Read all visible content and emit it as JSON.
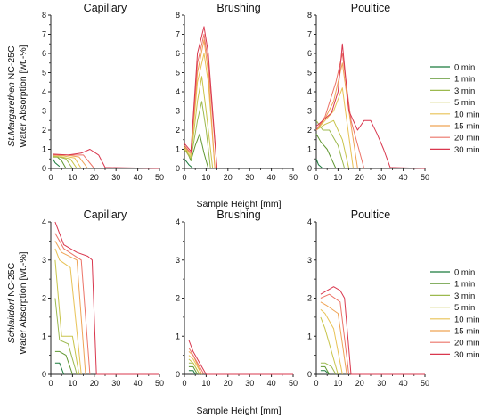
{
  "figure": {
    "x_label": "Sample Height [mm]",
    "rows": [
      {
        "stone": "St.Margarethen",
        "stone_suffix": " NC-25C",
        "ylabel_2": "Water Absorption [wt.-%]"
      },
      {
        "stone": "Schlaitdorf",
        "stone_suffix": " NC-25C",
        "ylabel_2": "Water Absorption [wt.-%]"
      }
    ]
  },
  "chart_data": [
    {
      "type": "line",
      "row": 0,
      "col": 0,
      "title": "Capillary",
      "xlim": [
        0,
        50
      ],
      "ylim": [
        0,
        8
      ],
      "xticks": [
        0,
        10,
        20,
        30,
        40,
        50
      ],
      "yticks": [
        0,
        1,
        2,
        3,
        4,
        5,
        6,
        7,
        8
      ],
      "series": [
        {
          "name": "0 min",
          "color": "#1a7a3c",
          "x": [
            1,
            2,
            4
          ],
          "y": [
            0.5,
            0.3,
            0.1
          ]
        },
        {
          "name": "1 min",
          "color": "#5f9630",
          "x": [
            1,
            3,
            5,
            7
          ],
          "y": [
            0.6,
            0.6,
            0.4,
            0.0
          ]
        },
        {
          "name": "3 min",
          "color": "#9cb94e",
          "x": [
            1,
            4,
            7,
            10
          ],
          "y": [
            0.6,
            0.6,
            0.5,
            0.0
          ]
        },
        {
          "name": "5 min",
          "color": "#c8c44a",
          "x": [
            1,
            5,
            9,
            12
          ],
          "y": [
            0.65,
            0.6,
            0.5,
            0.0
          ]
        },
        {
          "name": "10 min",
          "color": "#e8c255",
          "x": [
            1,
            6,
            11,
            14
          ],
          "y": [
            0.7,
            0.65,
            0.55,
            0.0
          ]
        },
        {
          "name": "15 min",
          "color": "#efa355",
          "x": [
            1,
            7,
            13,
            17
          ],
          "y": [
            0.7,
            0.7,
            0.6,
            0.0
          ]
        },
        {
          "name": "20 min",
          "color": "#ec7468",
          "x": [
            1,
            8,
            15,
            20
          ],
          "y": [
            0.7,
            0.7,
            0.7,
            0.0
          ]
        },
        {
          "name": "30 min",
          "color": "#d9374e",
          "x": [
            1,
            8,
            14,
            18,
            22,
            25,
            50
          ],
          "y": [
            0.75,
            0.7,
            0.8,
            1.0,
            0.7,
            0.05,
            0.0
          ]
        }
      ]
    },
    {
      "type": "line",
      "row": 0,
      "col": 1,
      "title": "Brushing",
      "xlim": [
        0,
        50
      ],
      "ylim": [
        0,
        8
      ],
      "xticks": [
        0,
        10,
        20,
        30,
        40,
        50
      ],
      "yticks": [
        0,
        1,
        2,
        3,
        4,
        5,
        6,
        7,
        8
      ],
      "series": [
        {
          "name": "0 min",
          "color": "#1a7a3c",
          "x": [
            0,
            2,
            4
          ],
          "y": [
            0.5,
            0.2,
            0.0
          ]
        },
        {
          "name": "1 min",
          "color": "#5f9630",
          "x": [
            0,
            3,
            5,
            7,
            9,
            11
          ],
          "y": [
            1.2,
            0.4,
            1.2,
            1.8,
            0.8,
            0.0
          ]
        },
        {
          "name": "3 min",
          "color": "#9cb94e",
          "x": [
            0,
            3,
            6,
            8,
            10,
            12
          ],
          "y": [
            1.0,
            0.5,
            2.5,
            3.5,
            2.0,
            0.0
          ]
        },
        {
          "name": "5 min",
          "color": "#c8c44a",
          "x": [
            0,
            3,
            6,
            8,
            10,
            13
          ],
          "y": [
            1.0,
            0.6,
            3.5,
            4.8,
            3.0,
            0.0
          ]
        },
        {
          "name": "10 min",
          "color": "#e8c255",
          "x": [
            0,
            3,
            6,
            9,
            11,
            14
          ],
          "y": [
            1.1,
            0.7,
            4.5,
            6.0,
            4.5,
            0.0
          ]
        },
        {
          "name": "15 min",
          "color": "#efa355",
          "x": [
            0,
            3,
            6,
            9,
            11,
            14
          ],
          "y": [
            1.1,
            0.8,
            5.0,
            6.7,
            5.0,
            0.0
          ]
        },
        {
          "name": "20 min",
          "color": "#ec7468",
          "x": [
            0,
            3,
            6,
            9,
            11,
            15
          ],
          "y": [
            1.2,
            0.8,
            5.5,
            7.0,
            5.5,
            0.0
          ]
        },
        {
          "name": "30 min",
          "color": "#d9374e",
          "x": [
            0,
            3,
            6,
            9,
            11,
            15
          ],
          "y": [
            1.3,
            0.9,
            6.0,
            7.4,
            6.0,
            0.0
          ]
        }
      ]
    },
    {
      "type": "line",
      "row": 0,
      "col": 2,
      "title": "Poultice",
      "xlim": [
        0,
        50
      ],
      "ylim": [
        0,
        8
      ],
      "xticks": [
        0,
        10,
        20,
        30,
        40,
        50
      ],
      "yticks": [
        0,
        1,
        2,
        3,
        4,
        5,
        6,
        7,
        8
      ],
      "series": [
        {
          "name": "0 min",
          "color": "#1a7a3c",
          "x": [
            0,
            1,
            3
          ],
          "y": [
            0.5,
            0.2,
            0.0
          ]
        },
        {
          "name": "1 min",
          "color": "#5f9630",
          "x": [
            0,
            2,
            5,
            7,
            9
          ],
          "y": [
            1.8,
            1.4,
            1.0,
            0.5,
            0.0
          ]
        },
        {
          "name": "3 min",
          "color": "#9cb94e",
          "x": [
            0,
            3,
            6,
            10,
            13
          ],
          "y": [
            2.5,
            2.0,
            2.0,
            1.2,
            0.0
          ]
        },
        {
          "name": "5 min",
          "color": "#c8c44a",
          "x": [
            0,
            4,
            8,
            12,
            15
          ],
          "y": [
            2.0,
            2.3,
            2.5,
            1.5,
            0.0
          ]
        },
        {
          "name": "10 min",
          "color": "#e8c255",
          "x": [
            0,
            4,
            8,
            12,
            14,
            17
          ],
          "y": [
            2.0,
            2.5,
            3.0,
            4.2,
            2.5,
            0.0
          ]
        },
        {
          "name": "15 min",
          "color": "#efa355",
          "x": [
            0,
            4,
            8,
            12,
            15,
            19
          ],
          "y": [
            2.0,
            2.6,
            3.5,
            5.5,
            3.0,
            0.0
          ]
        },
        {
          "name": "20 min",
          "color": "#ec7468",
          "x": [
            0,
            4,
            9,
            12,
            16,
            22
          ],
          "y": [
            2.0,
            2.7,
            4.5,
            6.0,
            2.5,
            0.0
          ]
        },
        {
          "name": "30 min",
          "color": "#d9374e",
          "x": [
            0,
            3,
            7,
            10,
            12,
            15,
            19,
            22,
            25,
            28,
            31,
            34,
            50
          ],
          "y": [
            2.2,
            2.5,
            2.9,
            4.0,
            6.5,
            3.0,
            2.0,
            2.5,
            2.5,
            1.8,
            1.0,
            0.05,
            0.0
          ]
        }
      ]
    },
    {
      "type": "line",
      "row": 1,
      "col": 0,
      "title": "Capillary",
      "xlim": [
        0,
        50
      ],
      "ylim": [
        0,
        4
      ],
      "xticks": [
        0,
        10,
        20,
        30,
        40,
        50
      ],
      "yticks": [
        0,
        1,
        2,
        3,
        4
      ],
      "series": [
        {
          "name": "0 min",
          "color": "#1a7a3c",
          "x": [
            2,
            4,
            6
          ],
          "y": [
            0.3,
            0.3,
            0.0
          ]
        },
        {
          "name": "1 min",
          "color": "#5f9630",
          "x": [
            2,
            4,
            7,
            10
          ],
          "y": [
            0.6,
            0.6,
            0.5,
            0.0
          ]
        },
        {
          "name": "3 min",
          "color": "#9cb94e",
          "x": [
            2,
            4,
            8,
            12
          ],
          "y": [
            2.0,
            0.9,
            0.8,
            0.0
          ]
        },
        {
          "name": "5 min",
          "color": "#c8c44a",
          "x": [
            2,
            5,
            10,
            13
          ],
          "y": [
            3.0,
            1.0,
            1.0,
            0.0
          ]
        },
        {
          "name": "10 min",
          "color": "#e8c255",
          "x": [
            2,
            4,
            9,
            14
          ],
          "y": [
            3.3,
            3.0,
            2.8,
            0.0
          ]
        },
        {
          "name": "15 min",
          "color": "#efa355",
          "x": [
            2,
            5,
            12,
            16
          ],
          "y": [
            3.5,
            3.2,
            3.0,
            0.0
          ]
        },
        {
          "name": "20 min",
          "color": "#ec7468",
          "x": [
            2,
            6,
            14,
            18
          ],
          "y": [
            3.7,
            3.3,
            3.0,
            0.0
          ]
        },
        {
          "name": "30 min",
          "color": "#d9374e",
          "x": [
            2,
            6,
            12,
            17,
            19,
            21,
            50
          ],
          "y": [
            4.0,
            3.4,
            3.2,
            3.1,
            3.0,
            0.0,
            0.0
          ]
        }
      ]
    },
    {
      "type": "line",
      "row": 1,
      "col": 1,
      "title": "Brushing",
      "xlim": [
        0,
        50
      ],
      "ylim": [
        0,
        4
      ],
      "xticks": [
        0,
        10,
        20,
        30,
        40,
        50
      ],
      "yticks": [
        0,
        1,
        2,
        3,
        4
      ],
      "series": [
        {
          "name": "0 min",
          "color": "#1a7a3c",
          "x": [
            2,
            4,
            5
          ],
          "y": [
            0.1,
            0.1,
            0.0
          ]
        },
        {
          "name": "1 min",
          "color": "#5f9630",
          "x": [
            2,
            4,
            6
          ],
          "y": [
            0.2,
            0.2,
            0.0
          ]
        },
        {
          "name": "3 min",
          "color": "#9cb94e",
          "x": [
            2,
            4,
            7
          ],
          "y": [
            0.3,
            0.3,
            0.0
          ]
        },
        {
          "name": "5 min",
          "color": "#c8c44a",
          "x": [
            2,
            4,
            7
          ],
          "y": [
            0.4,
            0.3,
            0.0
          ]
        },
        {
          "name": "10 min",
          "color": "#e8c255",
          "x": [
            2,
            4,
            8
          ],
          "y": [
            0.5,
            0.4,
            0.0
          ]
        },
        {
          "name": "15 min",
          "color": "#efa355",
          "x": [
            2,
            4,
            8
          ],
          "y": [
            0.6,
            0.5,
            0.0
          ]
        },
        {
          "name": "20 min",
          "color": "#ec7468",
          "x": [
            2,
            4,
            9
          ],
          "y": [
            0.7,
            0.5,
            0.0
          ]
        },
        {
          "name": "30 min",
          "color": "#d9374e",
          "x": [
            2,
            4,
            7,
            10,
            50
          ],
          "y": [
            0.9,
            0.6,
            0.3,
            0.0,
            0.0
          ]
        }
      ]
    },
    {
      "type": "line",
      "row": 1,
      "col": 2,
      "title": "Poultice",
      "xlim": [
        0,
        50
      ],
      "ylim": [
        0,
        4
      ],
      "xticks": [
        0,
        10,
        20,
        30,
        40,
        50
      ],
      "yticks": [
        0,
        1,
        2,
        3,
        4
      ],
      "series": [
        {
          "name": "0 min",
          "color": "#1a7a3c",
          "x": [
            2,
            4,
            6
          ],
          "y": [
            0.1,
            0.1,
            0.0
          ]
        },
        {
          "name": "1 min",
          "color": "#5f9630",
          "x": [
            2,
            4,
            6
          ],
          "y": [
            0.2,
            0.2,
            0.0
          ]
        },
        {
          "name": "3 min",
          "color": "#9cb94e",
          "x": [
            2,
            4,
            7,
            9
          ],
          "y": [
            0.3,
            0.3,
            0.2,
            0.0
          ]
        },
        {
          "name": "5 min",
          "color": "#c8c44a",
          "x": [
            2,
            4,
            7,
            10
          ],
          "y": [
            1.5,
            1.2,
            0.6,
            0.0
          ]
        },
        {
          "name": "10 min",
          "color": "#e8c255",
          "x": [
            2,
            4,
            8,
            12
          ],
          "y": [
            1.7,
            1.6,
            1.2,
            0.0
          ]
        },
        {
          "name": "15 min",
          "color": "#efa355",
          "x": [
            2,
            5,
            10,
            14
          ],
          "y": [
            1.9,
            1.8,
            1.6,
            0.0
          ]
        },
        {
          "name": "20 min",
          "color": "#ec7468",
          "x": [
            2,
            6,
            11,
            15
          ],
          "y": [
            2.0,
            2.1,
            1.9,
            0.0
          ]
        },
        {
          "name": "30 min",
          "color": "#d9374e",
          "x": [
            2,
            5,
            8,
            11,
            13,
            16,
            50
          ],
          "y": [
            2.1,
            2.2,
            2.3,
            2.2,
            2.0,
            0.0,
            0.0
          ]
        }
      ]
    }
  ]
}
